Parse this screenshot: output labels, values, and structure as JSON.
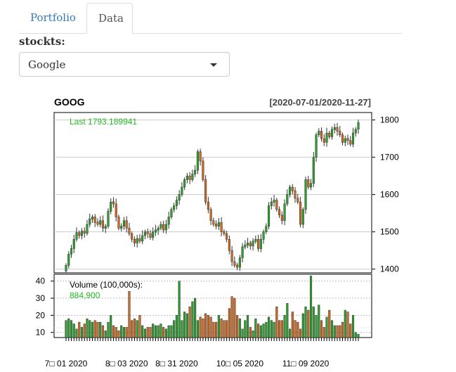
{
  "tabs": [
    {
      "label": "Portfolio",
      "active": false
    },
    {
      "label": "Data",
      "active": true
    }
  ],
  "stock_select": {
    "label": "stockts:",
    "value": "Google"
  },
  "chart_data": {
    "type": "candlestick",
    "title": "GOOG",
    "date_range": "[2020-07-01/2020-11-27]",
    "last_label": "Last 1793.189941",
    "volume_label": "Volume (100,000s):",
    "volume_value": "884,900",
    "price_ylim": [
      1390,
      1820
    ],
    "price_ticks": [
      "1400",
      "1500",
      "1600",
      "1700",
      "1800"
    ],
    "volume_ylim": [
      7,
      44
    ],
    "volume_ticks": [
      "10",
      "20",
      "30",
      "40"
    ],
    "x_tick_labels": [
      "7□ 01 2020",
      "8□ 03 2020",
      "8□ 31 2020",
      "10□ 05 2020",
      "11□ 09 2020"
    ],
    "x_tick_index": [
      0,
      23,
      42,
      66,
      91
    ],
    "up_color": "#2ca02c",
    "down_color": "#d2691e",
    "last_color": "#22bb22",
    "close": [
      1410,
      1440,
      1455,
      1480,
      1498,
      1490,
      1502,
      1496,
      1520,
      1535,
      1540,
      1525,
      1520,
      1530,
      1510,
      1515,
      1555,
      1580,
      1575,
      1540,
      1510,
      1515,
      1530,
      1510,
      1495,
      1480,
      1470,
      1482,
      1475,
      1490,
      1500,
      1495,
      1485,
      1500,
      1505,
      1510,
      1520,
      1505,
      1520,
      1540,
      1560,
      1570,
      1585,
      1600,
      1620,
      1640,
      1650,
      1640,
      1655,
      1665,
      1715,
      1690,
      1640,
      1580,
      1560,
      1530,
      1520,
      1515,
      1525,
      1500,
      1495,
      1480,
      1450,
      1420,
      1410,
      1405,
      1430,
      1460,
      1465,
      1470,
      1462,
      1475,
      1480,
      1455,
      1480,
      1500,
      1515,
      1570,
      1580,
      1585,
      1560,
      1545,
      1530,
      1575,
      1600,
      1620,
      1610,
      1590,
      1580,
      1520,
      1560,
      1640,
      1620,
      1630,
      1700,
      1760,
      1770,
      1750,
      1740,
      1765,
      1755,
      1775,
      1780,
      1770,
      1760,
      1740,
      1750,
      1745,
      1735,
      1765,
      1775,
      1793
    ],
    "volume": [
      17,
      18,
      17,
      15,
      12,
      16,
      13,
      15,
      18,
      17,
      16,
      17,
      16,
      16,
      14,
      11,
      16,
      20,
      14,
      13,
      11,
      14,
      13,
      13,
      34,
      17,
      18,
      17,
      20,
      14,
      12,
      13,
      13,
      15,
      14,
      14,
      15,
      13,
      12,
      14,
      14,
      17,
      20,
      40,
      17,
      22,
      21,
      25,
      28,
      30,
      17,
      19,
      18,
      21,
      20,
      19,
      16,
      16,
      20,
      18,
      17,
      17,
      24,
      31,
      30,
      20,
      18,
      12,
      17,
      20,
      13,
      11,
      18,
      15,
      14,
      15,
      16,
      19,
      17,
      16,
      25,
      17,
      17,
      20,
      27,
      12,
      22,
      17,
      16,
      12,
      21,
      25,
      23,
      43,
      25,
      20,
      26,
      17,
      13,
      19,
      23,
      17,
      14,
      14,
      14,
      16,
      23,
      22,
      15,
      20,
      10,
      9
    ],
    "up": [
      true,
      true,
      true,
      true,
      true,
      false,
      true,
      false,
      true,
      true,
      true,
      false,
      false,
      true,
      false,
      true,
      true,
      true,
      false,
      false,
      false,
      true,
      true,
      false,
      false,
      false,
      false,
      true,
      false,
      true,
      true,
      false,
      false,
      true,
      true,
      true,
      true,
      false,
      true,
      true,
      true,
      true,
      true,
      true,
      true,
      true,
      true,
      false,
      true,
      true,
      true,
      false,
      false,
      false,
      false,
      false,
      false,
      false,
      true,
      false,
      false,
      false,
      false,
      false,
      false,
      false,
      true,
      true,
      true,
      true,
      false,
      true,
      true,
      false,
      true,
      true,
      true,
      true,
      true,
      true,
      false,
      false,
      false,
      true,
      true,
      true,
      false,
      false,
      false,
      false,
      true,
      true,
      false,
      true,
      true,
      true,
      true,
      false,
      false,
      true,
      false,
      true,
      true,
      false,
      false,
      false,
      true,
      false,
      false,
      true,
      true,
      true
    ]
  }
}
